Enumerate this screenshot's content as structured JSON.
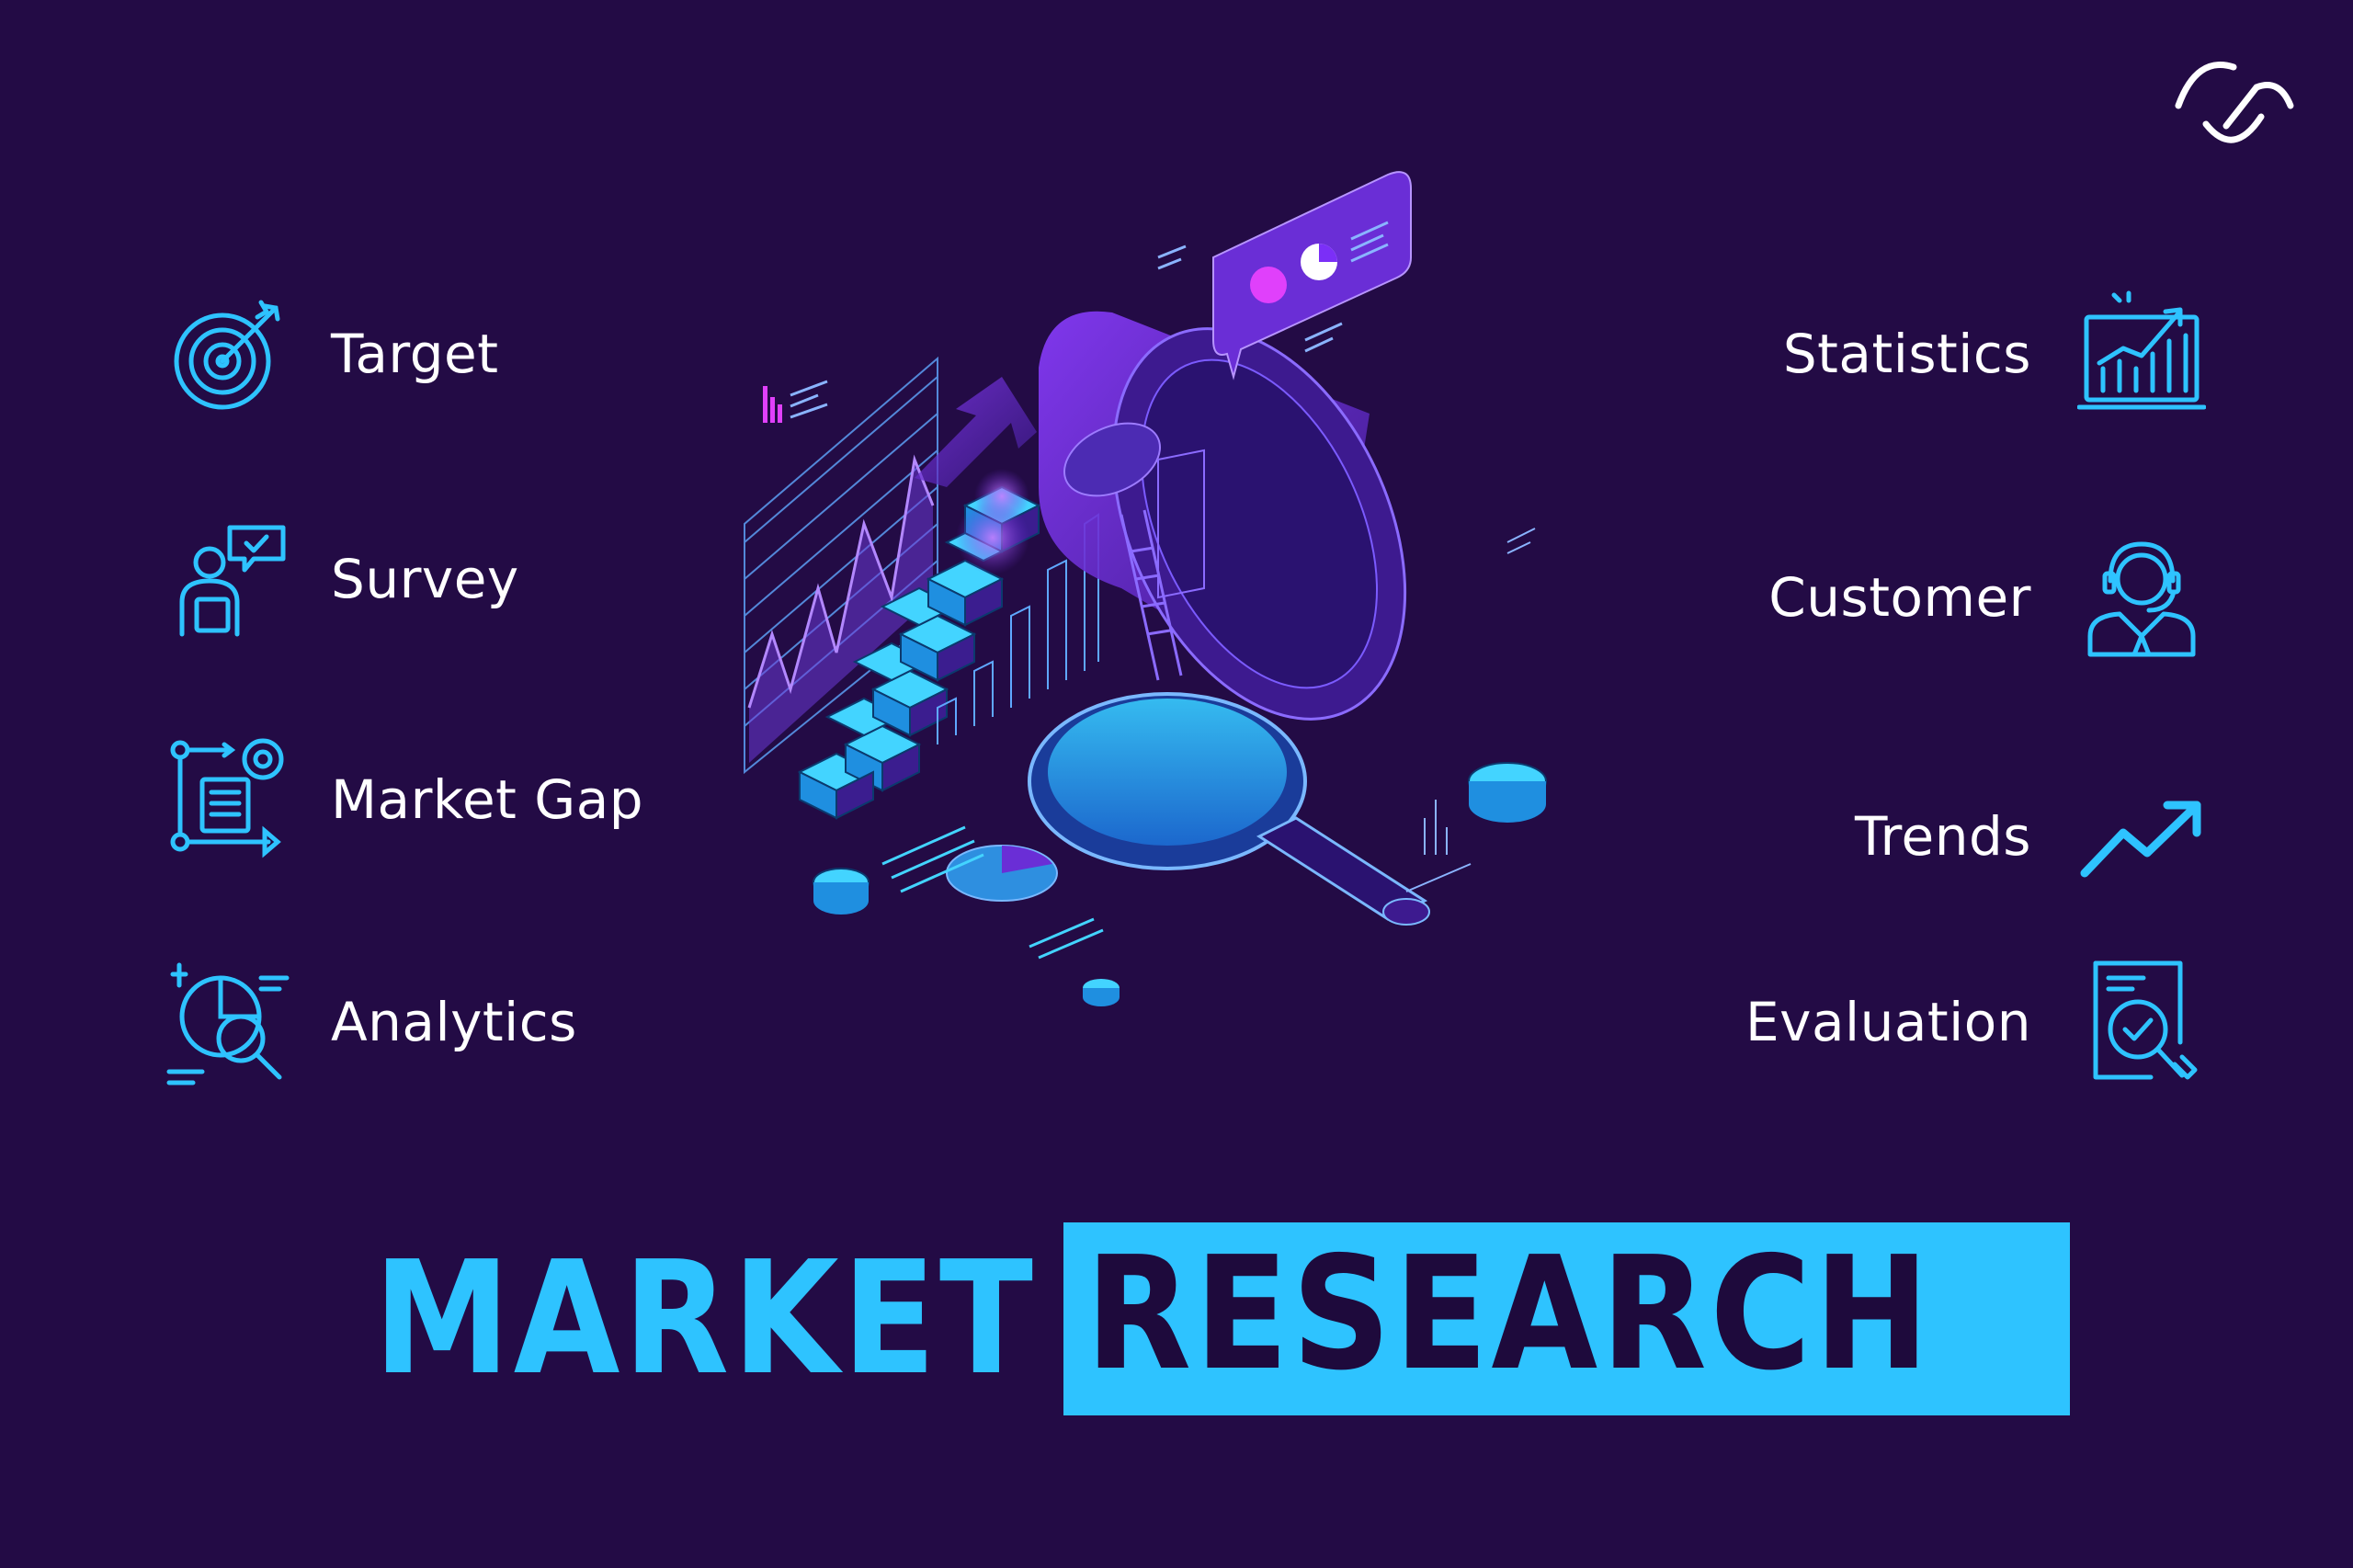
{
  "logo": {
    "icon": "brand-logo-icon"
  },
  "left_items": [
    {
      "label": "Target",
      "icon": "target-arrow-icon"
    },
    {
      "label": "Survey",
      "icon": "survey-person-chat-icon"
    },
    {
      "label": "Market Gap",
      "icon": "market-gap-process-icon"
    },
    {
      "label": "Analytics",
      "icon": "analytics-magnifier-icon"
    }
  ],
  "right_items": [
    {
      "label": "Statistics",
      "icon": "statistics-chart-icon"
    },
    {
      "label": "Customer",
      "icon": "customer-headset-icon"
    },
    {
      "label": "Trends",
      "icon": "trend-arrow-icon"
    },
    {
      "label": "Evaluation",
      "icon": "evaluation-document-icon"
    }
  ],
  "title": {
    "word1": "MARKET",
    "word2": "RESEARCH"
  },
  "colors": {
    "background": "#230b45",
    "accent": "#2ec3ff",
    "text": "#ffffff",
    "purple": "#7b2ff7"
  }
}
